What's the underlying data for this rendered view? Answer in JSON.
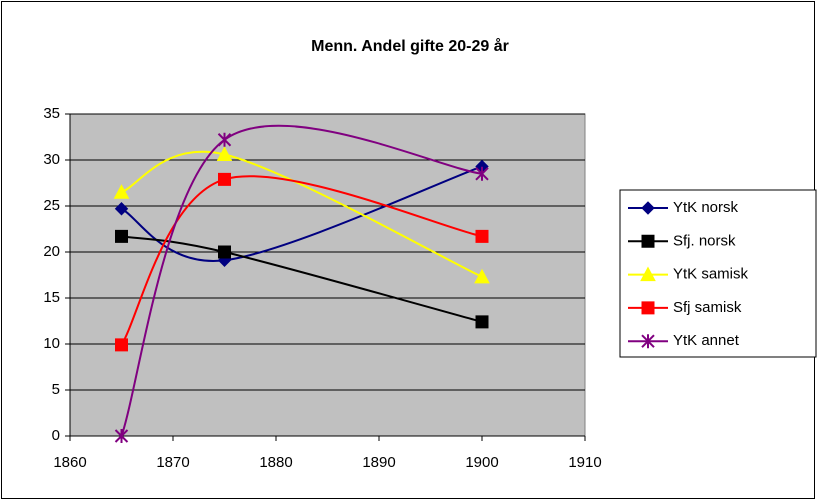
{
  "chart_data": {
    "type": "line",
    "title": "Menn. Andel gifte 20-29 år",
    "x": [
      1865,
      1875,
      1900
    ],
    "series": [
      {
        "name": "YtK norsk",
        "color": "#000080",
        "marker": "diamond",
        "values": [
          24.7,
          19.1,
          29.3
        ]
      },
      {
        "name": "Sfj. norsk",
        "color": "#000000",
        "marker": "square",
        "values": [
          21.7,
          20.0,
          12.4
        ]
      },
      {
        "name": "YtK samisk",
        "color": "#ffff00",
        "marker": "triangle",
        "values": [
          26.5,
          30.6,
          17.3
        ]
      },
      {
        "name": "Sfj samisk",
        "color": "#ff0000",
        "marker": "square",
        "values": [
          9.9,
          27.9,
          21.7
        ]
      },
      {
        "name": "YtK annet",
        "color": "#800080",
        "marker": "asterisk",
        "values": [
          0,
          32.2,
          28.5
        ]
      }
    ],
    "xlim": [
      1860,
      1910
    ],
    "xticks": [
      1860,
      1870,
      1880,
      1890,
      1900,
      1910
    ],
    "ylim": [
      0,
      35
    ],
    "yticks": [
      0,
      5,
      10,
      15,
      20,
      25,
      30,
      35
    ],
    "grid": true,
    "smooth": true,
    "plot_background": "#c0c0c0",
    "legend": "right"
  }
}
